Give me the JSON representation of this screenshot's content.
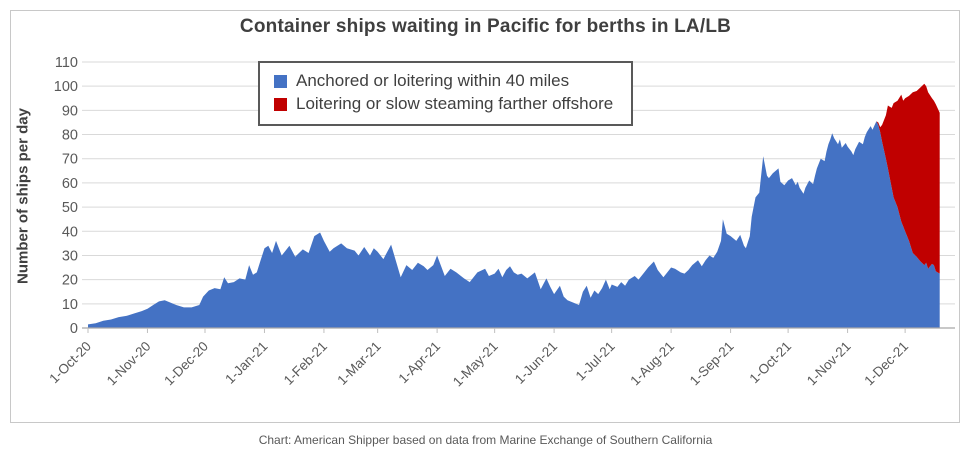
{
  "title": "Container ships waiting in Pacific for berths in LA/LB",
  "caption": "Chart: American Shipper based on data from Marine Exchange of Southern California",
  "colors": {
    "anchored_blue": "#4472C4",
    "offshore_red": "#C00000",
    "gridline": "#d9d9d9",
    "axis_line": "#a6a6a6",
    "tick_text": "#595959",
    "title_text": "#3f3f3f",
    "legend_border": "#595959"
  },
  "chart_data": {
    "type": "area",
    "stacked": true,
    "title": "Container ships waiting in Pacific for berths in LA/LB",
    "xlabel": "",
    "ylabel": "Number of ships per day",
    "ylim": [
      0,
      110
    ],
    "x_domain_days": [
      0,
      452
    ],
    "grid": "horizontal",
    "legend_position": "top-center-inside",
    "y_ticks": [
      0,
      10,
      20,
      30,
      40,
      50,
      60,
      70,
      80,
      90,
      100,
      110
    ],
    "x_ticks": [
      {
        "label": "1-Oct-20",
        "day": 0
      },
      {
        "label": "1-Nov-20",
        "day": 31
      },
      {
        "label": "1-Dec-20",
        "day": 61
      },
      {
        "label": "1-Jan-21",
        "day": 92
      },
      {
        "label": "1-Feb-21",
        "day": 123
      },
      {
        "label": "1-Mar-21",
        "day": 151
      },
      {
        "label": "1-Apr-21",
        "day": 182
      },
      {
        "label": "1-May-21",
        "day": 212
      },
      {
        "label": "1-Jun-21",
        "day": 243
      },
      {
        "label": "1-Jul-21",
        "day": 273
      },
      {
        "label": "1-Aug-21",
        "day": 304
      },
      {
        "label": "1-Sep-21",
        "day": 335
      },
      {
        "label": "1-Oct-21",
        "day": 365
      },
      {
        "label": "1-Nov-21",
        "day": 396
      },
      {
        "label": "1-Dec-21",
        "day": 426
      }
    ],
    "series": [
      {
        "name": "Anchored or loitering within 40 miles",
        "color": "#4472C4",
        "points": [
          [
            0,
            1.5
          ],
          [
            4,
            2
          ],
          [
            8,
            3
          ],
          [
            12,
            3.5
          ],
          [
            16,
            4.5
          ],
          [
            20,
            5
          ],
          [
            24,
            6
          ],
          [
            28,
            7
          ],
          [
            31,
            8
          ],
          [
            34,
            9.5
          ],
          [
            37,
            11
          ],
          [
            40,
            11.5
          ],
          [
            43,
            10.5
          ],
          [
            46,
            9.5
          ],
          [
            50,
            8.5
          ],
          [
            54,
            8.5
          ],
          [
            58,
            9.5
          ],
          [
            60,
            13
          ],
          [
            63,
            15.5
          ],
          [
            66,
            16.5
          ],
          [
            69,
            16
          ],
          [
            71,
            21
          ],
          [
            73,
            18.5
          ],
          [
            76,
            19
          ],
          [
            79,
            20.5
          ],
          [
            82,
            20
          ],
          [
            84,
            26
          ],
          [
            86,
            22
          ],
          [
            88,
            23
          ],
          [
            90,
            28
          ],
          [
            92,
            33
          ],
          [
            94,
            34
          ],
          [
            96,
            31
          ],
          [
            98,
            36
          ],
          [
            101,
            30
          ],
          [
            103,
            32
          ],
          [
            105,
            34
          ],
          [
            108,
            29.5
          ],
          [
            110,
            31
          ],
          [
            112,
            32.5
          ],
          [
            115,
            31
          ],
          [
            118,
            38
          ],
          [
            121,
            39.5
          ],
          [
            123,
            36
          ],
          [
            126,
            31.5
          ],
          [
            128,
            33
          ],
          [
            132,
            35
          ],
          [
            135,
            33
          ],
          [
            139,
            32
          ],
          [
            141,
            30
          ],
          [
            144,
            33.5
          ],
          [
            147,
            30
          ],
          [
            149,
            33
          ],
          [
            151,
            31.5
          ],
          [
            154,
            28.5
          ],
          [
            158,
            34.5
          ],
          [
            163,
            21
          ],
          [
            166,
            26
          ],
          [
            169,
            24
          ],
          [
            172,
            27
          ],
          [
            175,
            25.5
          ],
          [
            177,
            24
          ],
          [
            180,
            26
          ],
          [
            182,
            30
          ],
          [
            186,
            21.5
          ],
          [
            189,
            24.5
          ],
          [
            192,
            23
          ],
          [
            196,
            20.5
          ],
          [
            199,
            19
          ],
          [
            203,
            23
          ],
          [
            207,
            24.5
          ],
          [
            209,
            21.5
          ],
          [
            212,
            22.5
          ],
          [
            214,
            24.5
          ],
          [
            216,
            21
          ],
          [
            218,
            24
          ],
          [
            220,
            25.5
          ],
          [
            222,
            23
          ],
          [
            224,
            22
          ],
          [
            226,
            22.5
          ],
          [
            229,
            20.5
          ],
          [
            233,
            23
          ],
          [
            236,
            16
          ],
          [
            239,
            20.5
          ],
          [
            241,
            17
          ],
          [
            243,
            14
          ],
          [
            246,
            17.5
          ],
          [
            248,
            13
          ],
          [
            250,
            11.5
          ],
          [
            253,
            10.5
          ],
          [
            256,
            9.5
          ],
          [
            258,
            15
          ],
          [
            260,
            17.5
          ],
          [
            262,
            12.5
          ],
          [
            264,
            15.5
          ],
          [
            266,
            14
          ],
          [
            268,
            16.5
          ],
          [
            270,
            20
          ],
          [
            272,
            16
          ],
          [
            273,
            18
          ],
          [
            276,
            17
          ],
          [
            278,
            19
          ],
          [
            280,
            17.5
          ],
          [
            282,
            20
          ],
          [
            285,
            21.5
          ],
          [
            287,
            20
          ],
          [
            290,
            23
          ],
          [
            292,
            25
          ],
          [
            295,
            27.5
          ],
          [
            297,
            24
          ],
          [
            300,
            21
          ],
          [
            302,
            23
          ],
          [
            304,
            25
          ],
          [
            306,
            24.5
          ],
          [
            309,
            23
          ],
          [
            311,
            22.5
          ],
          [
            313,
            24
          ],
          [
            315,
            26
          ],
          [
            318,
            28
          ],
          [
            320,
            25.5
          ],
          [
            322,
            28
          ],
          [
            324,
            30
          ],
          [
            326,
            29
          ],
          [
            328,
            31.5
          ],
          [
            330,
            36
          ],
          [
            331,
            45
          ],
          [
            333,
            39
          ],
          [
            335,
            38
          ],
          [
            338,
            36
          ],
          [
            340,
            38.5
          ],
          [
            342,
            34
          ],
          [
            343,
            33
          ],
          [
            345,
            38
          ],
          [
            346,
            46
          ],
          [
            348,
            54
          ],
          [
            350,
            56
          ],
          [
            352,
            71
          ],
          [
            354,
            63
          ],
          [
            355,
            62
          ],
          [
            357,
            64
          ],
          [
            360,
            66
          ],
          [
            361,
            60.5
          ],
          [
            363,
            59
          ],
          [
            365,
            61
          ],
          [
            367,
            62
          ],
          [
            369,
            59
          ],
          [
            370,
            60.5
          ],
          [
            371,
            58
          ],
          [
            373,
            55.5
          ],
          [
            374,
            58
          ],
          [
            376,
            61
          ],
          [
            378,
            59.5
          ],
          [
            379,
            63
          ],
          [
            380,
            66
          ],
          [
            382,
            70
          ],
          [
            384,
            69
          ],
          [
            385,
            73
          ],
          [
            386,
            76
          ],
          [
            387,
            78
          ],
          [
            388,
            80.5
          ],
          [
            389,
            78.5
          ],
          [
            391,
            76
          ],
          [
            392,
            78
          ],
          [
            393,
            74.5
          ],
          [
            395,
            76.5
          ],
          [
            396,
            75
          ],
          [
            398,
            73
          ],
          [
            399,
            71.5
          ],
          [
            400,
            74
          ],
          [
            402,
            77
          ],
          [
            404,
            76
          ],
          [
            405,
            79
          ],
          [
            406,
            81
          ],
          [
            408,
            83.5
          ],
          [
            409,
            82
          ],
          [
            411,
            85.5
          ],
          [
            412,
            84
          ],
          [
            413,
            81
          ],
          [
            414,
            77
          ],
          [
            416,
            70
          ],
          [
            417,
            66
          ],
          [
            419,
            58
          ],
          [
            420,
            54
          ],
          [
            422,
            50
          ],
          [
            424,
            44
          ],
          [
            425,
            42
          ],
          [
            426,
            40
          ],
          [
            428,
            36
          ],
          [
            430,
            31
          ],
          [
            432,
            29.5
          ],
          [
            434,
            27.5
          ],
          [
            436,
            26
          ],
          [
            437,
            27
          ],
          [
            438,
            24.5
          ],
          [
            440,
            26.5
          ],
          [
            441,
            26
          ],
          [
            442,
            23.5
          ],
          [
            444,
            22.5
          ]
        ]
      },
      {
        "name": "Loitering or slow steaming farther offshore",
        "color": "#C00000",
        "points": [
          [
            411,
            0
          ],
          [
            412,
            1
          ],
          [
            413,
            2
          ],
          [
            414,
            7
          ],
          [
            416,
            18
          ],
          [
            417,
            26
          ],
          [
            419,
            33
          ],
          [
            420,
            39
          ],
          [
            422,
            44
          ],
          [
            424,
            52.5
          ],
          [
            425,
            52
          ],
          [
            426,
            55
          ],
          [
            428,
            60
          ],
          [
            430,
            66.5
          ],
          [
            432,
            68.5
          ],
          [
            434,
            72
          ],
          [
            436,
            75
          ],
          [
            437,
            73
          ],
          [
            438,
            73
          ],
          [
            440,
            68.5
          ],
          [
            441,
            68
          ],
          [
            442,
            69
          ],
          [
            444,
            66.5
          ]
        ]
      }
    ]
  }
}
